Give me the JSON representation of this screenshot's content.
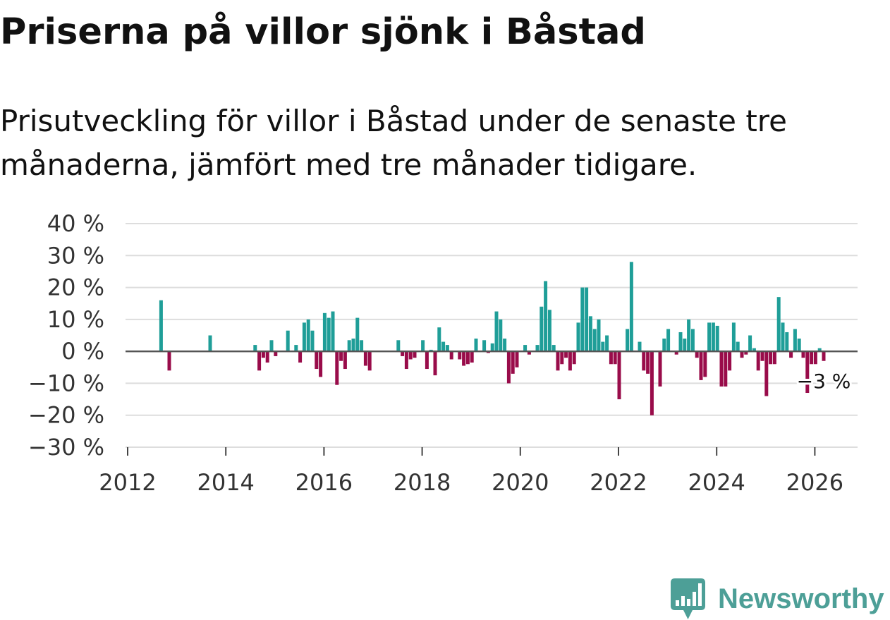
{
  "title": "Priserna på villor sjönk i Båstad",
  "subtitle": "Prisutveckling för villor i Båstad under de senaste tre månaderna, jämfört med tre månader tidigare.",
  "colors": {
    "positive": "#1f9e98",
    "negative": "#990c4a",
    "zero_line": "#555555",
    "grid": "#dddddd",
    "axis_text": "#333333",
    "tick": "#444444",
    "brand": "#4d9f97"
  },
  "logo": {
    "name": "Newsworthy",
    "icon": "bar-chart-bubble-icon"
  },
  "chart_data": {
    "type": "bar",
    "title": "",
    "xlabel": "",
    "ylabel": "",
    "ylim": [
      -30,
      40
    ],
    "grid": true,
    "yticks": [
      40,
      30,
      20,
      10,
      0,
      -10,
      -20,
      -30
    ],
    "ytick_labels": [
      "40 %",
      "30 %",
      "20 %",
      "10 %",
      "0 %",
      "−10 %",
      "−20 %",
      "−30 %"
    ],
    "xticks": [
      "2012",
      "2014",
      "2016",
      "2018",
      "2020",
      "2022",
      "2024",
      "2026"
    ],
    "annotation": {
      "date": "2026-03",
      "label": "−3 %"
    },
    "x": [
      "2012-09",
      "2012-11",
      "2013-09",
      "2014-08",
      "2014-09",
      "2014-10",
      "2014-11",
      "2014-12",
      "2015-01",
      "2015-04",
      "2015-06",
      "2015-07",
      "2015-08",
      "2015-09",
      "2015-10",
      "2015-11",
      "2015-12",
      "2016-01",
      "2016-02",
      "2016-03",
      "2016-04",
      "2016-05",
      "2016-06",
      "2016-07",
      "2016-08",
      "2016-09",
      "2016-10",
      "2016-11",
      "2016-12",
      "2017-07",
      "2017-08",
      "2017-09",
      "2017-10",
      "2017-11",
      "2018-01",
      "2018-02",
      "2018-03",
      "2018-04",
      "2018-05",
      "2018-06",
      "2018-07",
      "2018-08",
      "2018-10",
      "2018-11",
      "2018-12",
      "2019-01",
      "2019-02",
      "2019-04",
      "2019-05",
      "2019-06",
      "2019-07",
      "2019-08",
      "2019-09",
      "2019-10",
      "2019-11",
      "2019-12",
      "2020-02",
      "2020-03",
      "2020-05",
      "2020-06",
      "2020-07",
      "2020-08",
      "2020-09",
      "2020-10",
      "2020-11",
      "2020-12",
      "2021-01",
      "2021-02",
      "2021-03",
      "2021-04",
      "2021-05",
      "2021-06",
      "2021-07",
      "2021-08",
      "2021-09",
      "2021-10",
      "2021-11",
      "2021-12",
      "2022-01",
      "2022-03",
      "2022-04",
      "2022-06",
      "2022-07",
      "2022-08",
      "2022-09",
      "2022-11",
      "2022-12",
      "2023-01",
      "2023-03",
      "2023-04",
      "2023-05",
      "2023-06",
      "2023-07",
      "2023-08",
      "2023-09",
      "2023-10",
      "2023-11",
      "2023-12",
      "2024-01",
      "2024-02",
      "2024-03",
      "2024-04",
      "2024-05",
      "2024-06",
      "2024-07",
      "2024-08",
      "2024-09",
      "2024-10",
      "2024-11",
      "2024-12",
      "2025-01",
      "2025-02",
      "2025-03",
      "2025-04",
      "2025-05",
      "2025-06",
      "2025-07",
      "2025-08",
      "2025-09",
      "2025-10",
      "2025-11",
      "2025-12",
      "2026-01",
      "2026-02",
      "2026-03"
    ],
    "values": [
      16,
      -6,
      5,
      2,
      -6,
      -2,
      -3.5,
      3.5,
      -1.5,
      6.5,
      2,
      -3.5,
      9,
      10,
      6.5,
      -5.5,
      -8,
      12,
      10.5,
      12.5,
      -10.5,
      -3,
      -5.5,
      3.5,
      4,
      10.5,
      3.5,
      -4.5,
      -6,
      3.5,
      -1.5,
      -5.5,
      -2.5,
      -2,
      3.5,
      -5.5,
      0.5,
      -7.5,
      7.5,
      3,
      2,
      -2.5,
      -2.5,
      -4.5,
      -4,
      -3.5,
      4,
      3.5,
      -0.5,
      2.5,
      12.5,
      10,
      4,
      -10,
      -7,
      -5,
      2,
      -1,
      2,
      14,
      22,
      13,
      2,
      -6,
      -4,
      -2,
      -6,
      -4,
      9,
      20,
      20,
      11,
      7,
      10,
      3,
      5,
      -4,
      -4,
      -15,
      7,
      28,
      3,
      -6,
      -7,
      -20,
      -11,
      4,
      7,
      -1,
      6,
      4,
      10,
      7,
      -2,
      -9,
      -8,
      9,
      9,
      8,
      -11,
      -11,
      -6,
      9,
      3,
      -2,
      -1,
      5,
      1,
      -6,
      -3,
      -14,
      -4,
      -4,
      17,
      9,
      6,
      -2,
      7,
      4,
      -2,
      -13,
      -4,
      -4,
      1,
      -3
    ]
  }
}
